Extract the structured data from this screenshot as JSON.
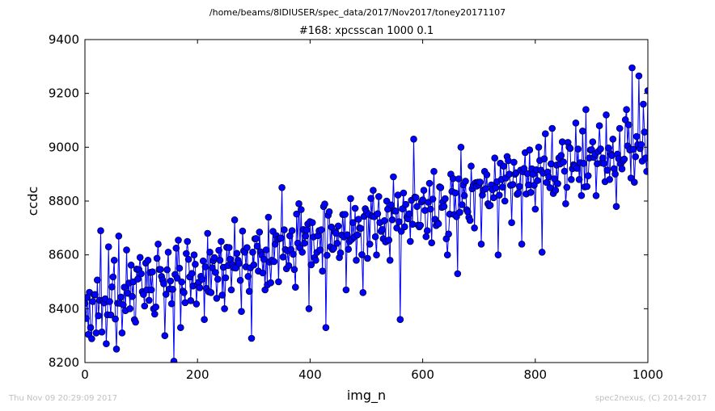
{
  "suptitle": "/home/beams/8IDIUSER/spec_data/2017/Nov2017/toney20171107",
  "footer": {
    "left": "Thu Nov 09 20:29:09 2017",
    "right": "spec2nexus, (C) 2014-2017"
  },
  "colors": {
    "series": "#0000ff",
    "marker_fill": "#0000ff",
    "marker_edge": "#000000",
    "footer_text": "#c0c0c0"
  },
  "chart_data": {
    "type": "line",
    "title": "#168: xpcsscan 1000 0.1",
    "xlabel": "img_n",
    "ylabel": "ccdc",
    "xlim": [
      0,
      1000
    ],
    "ylim": [
      8200,
      9400
    ],
    "xticks": [
      "0",
      "200",
      "400",
      "600",
      "800",
      "1000"
    ],
    "yticks": [
      "8200",
      "8400",
      "8600",
      "8800",
      "9000",
      "9200",
      "9400"
    ],
    "grid": false,
    "markers": "circle",
    "trend": {
      "start": 8420,
      "end": 9000
    },
    "series": [
      {
        "points": [
          [
            0,
            8420
          ],
          [
            5,
            8580
          ],
          [
            10,
            8330
          ],
          [
            15,
            8470
          ],
          [
            20,
            8310
          ],
          [
            25,
            8540
          ],
          [
            28,
            8690
          ],
          [
            33,
            8460
          ],
          [
            38,
            8270
          ],
          [
            42,
            8630
          ],
          [
            47,
            8380
          ],
          [
            52,
            8580
          ],
          [
            56,
            8250
          ],
          [
            60,
            8670
          ],
          [
            66,
            8310
          ],
          [
            70,
            8480
          ],
          [
            75,
            8560
          ],
          [
            80,
            8400
          ],
          [
            86,
            8500
          ],
          [
            90,
            8350
          ],
          [
            95,
            8300
          ],
          [
            100,
            8530
          ],
          [
            106,
            8410
          ],
          [
            112,
            8580
          ],
          [
            118,
            8470
          ],
          [
            124,
            8380
          ],
          [
            130,
            8640
          ],
          [
            136,
            8520
          ],
          [
            142,
            8300
          ],
          [
            148,
            8610
          ],
          [
            153,
            8450
          ],
          [
            158,
            8205
          ],
          [
            163,
            8550
          ],
          [
            170,
            8330
          ],
          [
            176,
            8460
          ],
          [
            182,
            8650
          ],
          [
            188,
            8430
          ],
          [
            194,
            8600
          ],
          [
            200,
            8490
          ],
          [
            206,
            8520
          ],
          [
            212,
            8360
          ],
          [
            218,
            8680
          ],
          [
            224,
            8460
          ],
          [
            230,
            8590
          ],
          [
            236,
            8510
          ],
          [
            242,
            8650
          ],
          [
            248,
            8400
          ],
          [
            254,
            8560
          ],
          [
            260,
            8470
          ],
          [
            266,
            8730
          ],
          [
            272,
            8580
          ],
          [
            278,
            8390
          ],
          [
            284,
            8610
          ],
          [
            290,
            8520
          ],
          [
            296,
            8290
          ],
          [
            302,
            8660
          ],
          [
            308,
            8540
          ],
          [
            314,
            8600
          ],
          [
            320,
            8470
          ],
          [
            326,
            8740
          ],
          [
            332,
            8580
          ],
          [
            338,
            8640
          ],
          [
            344,
            8500
          ],
          [
            350,
            8850
          ],
          [
            356,
            8620
          ],
          [
            362,
            8560
          ],
          [
            368,
            8690
          ],
          [
            374,
            8480
          ],
          [
            380,
            8790
          ],
          [
            386,
            8610
          ],
          [
            392,
            8670
          ],
          [
            398,
            8400
          ],
          [
            404,
            8720
          ],
          [
            410,
            8580
          ],
          [
            416,
            8690
          ],
          [
            422,
            8540
          ],
          [
            428,
            8330
          ],
          [
            434,
            8760
          ],
          [
            440,
            8620
          ],
          [
            446,
            8680
          ],
          [
            452,
            8590
          ],
          [
            458,
            8750
          ],
          [
            464,
            8470
          ],
          [
            470,
            8650
          ],
          [
            476,
            8720
          ],
          [
            482,
            8580
          ],
          [
            488,
            8700
          ],
          [
            494,
            8460
          ],
          [
            500,
            8760
          ],
          [
            506,
            8640
          ],
          [
            512,
            8840
          ],
          [
            518,
            8600
          ],
          [
            524,
            8720
          ],
          [
            530,
            8660
          ],
          [
            536,
            8800
          ],
          [
            542,
            8580
          ],
          [
            548,
            8890
          ],
          [
            554,
            8700
          ],
          [
            560,
            8360
          ],
          [
            566,
            8830
          ],
          [
            572,
            8740
          ],
          [
            578,
            8650
          ],
          [
            584,
            9030
          ],
          [
            590,
            8780
          ],
          [
            596,
            8710
          ],
          [
            602,
            8840
          ],
          [
            608,
            8690
          ],
          [
            614,
            8770
          ],
          [
            620,
            8910
          ],
          [
            626,
            8720
          ],
          [
            632,
            8850
          ],
          [
            638,
            8780
          ],
          [
            644,
            8600
          ],
          [
            650,
            8900
          ],
          [
            656,
            8750
          ],
          [
            662,
            8530
          ],
          [
            668,
            9000
          ],
          [
            674,
            8820
          ],
          [
            680,
            8760
          ],
          [
            686,
            8930
          ],
          [
            692,
            8700
          ],
          [
            698,
            8870
          ],
          [
            704,
            8640
          ],
          [
            710,
            8910
          ],
          [
            716,
            8790
          ],
          [
            722,
            8860
          ],
          [
            728,
            8960
          ],
          [
            734,
            8600
          ],
          [
            740,
            8880
          ],
          [
            746,
            8800
          ],
          [
            752,
            8950
          ],
          [
            758,
            8720
          ],
          [
            764,
            8900
          ],
          [
            770,
            8830
          ],
          [
            776,
            8640
          ],
          [
            782,
            8980
          ],
          [
            788,
            8860
          ],
          [
            794,
            8920
          ],
          [
            800,
            8770
          ],
          [
            806,
            9000
          ],
          [
            812,
            8610
          ],
          [
            818,
            9050
          ],
          [
            824,
            8890
          ],
          [
            830,
            9070
          ],
          [
            836,
            8840
          ],
          [
            842,
            8960
          ],
          [
            848,
            9020
          ],
          [
            854,
            8790
          ],
          [
            860,
            9000
          ],
          [
            866,
            8920
          ],
          [
            872,
            9090
          ],
          [
            878,
            8880
          ],
          [
            884,
            9060
          ],
          [
            890,
            9140
          ],
          [
            896,
            8960
          ],
          [
            902,
            9020
          ],
          [
            908,
            8820
          ],
          [
            914,
            9080
          ],
          [
            920,
            8960
          ],
          [
            926,
            9120
          ],
          [
            932,
            8880
          ],
          [
            938,
            9030
          ],
          [
            944,
            8780
          ],
          [
            950,
            9070
          ],
          [
            956,
            8950
          ],
          [
            962,
            9140
          ],
          [
            968,
            8990
          ],
          [
            972,
            9295
          ],
          [
            976,
            8870
          ],
          [
            980,
            9040
          ],
          [
            984,
            9265
          ],
          [
            988,
            9010
          ],
          [
            992,
            9160
          ],
          [
            996,
            8960
          ],
          [
            1000,
            9210
          ]
        ]
      }
    ]
  }
}
